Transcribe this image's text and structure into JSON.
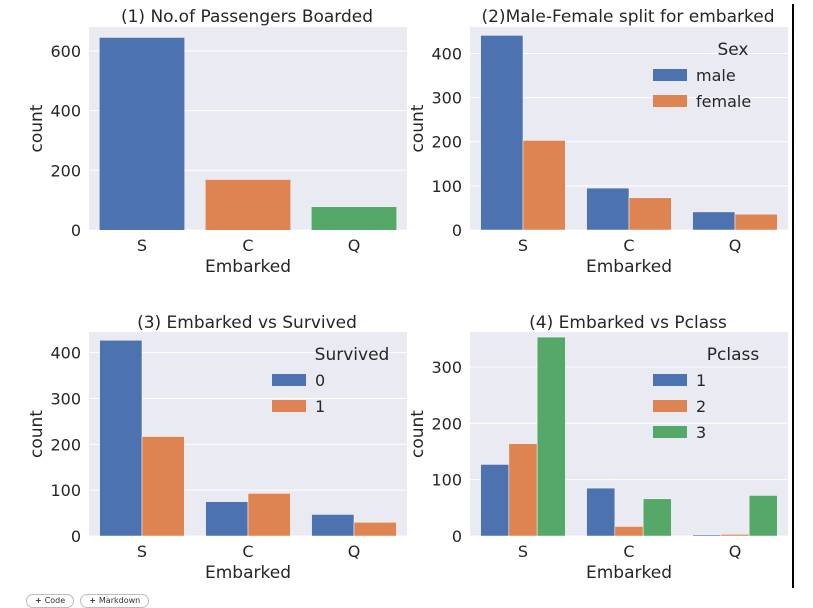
{
  "chart_data": [
    {
      "type": "bar",
      "title": "(1) No.of Passengers Boarded",
      "xlabel": "Embarked",
      "ylabel": "count",
      "categories": [
        "S",
        "C",
        "Q"
      ],
      "values": [
        644,
        168,
        77
      ],
      "bar_colors": [
        "#4c72b0",
        "#dd8452",
        "#55a868"
      ],
      "ylim": [
        0,
        680
      ],
      "yticks": [
        0,
        200,
        400,
        600
      ],
      "grid": true
    },
    {
      "type": "bar",
      "title": "(2)Male-Female split for embarked",
      "xlabel": "Embarked",
      "ylabel": "count",
      "categories": [
        "S",
        "C",
        "Q"
      ],
      "legend_title": "Sex",
      "legend_position": "top-right",
      "series": [
        {
          "name": "male",
          "values": [
            441,
            95,
            41
          ],
          "color": "#4c72b0"
        },
        {
          "name": "female",
          "values": [
            203,
            73,
            36
          ],
          "color": "#dd8452"
        }
      ],
      "ylim": [
        0,
        460
      ],
      "yticks": [
        0,
        100,
        200,
        300,
        400
      ],
      "grid": true
    },
    {
      "type": "bar",
      "title": "(3) Embarked vs Survived",
      "xlabel": "Embarked",
      "ylabel": "count",
      "categories": [
        "S",
        "C",
        "Q"
      ],
      "legend_title": "Survived",
      "legend_position": "top-right",
      "series": [
        {
          "name": "0",
          "values": [
            427,
            75,
            47
          ],
          "color": "#4c72b0"
        },
        {
          "name": "1",
          "values": [
            217,
            93,
            30
          ],
          "color": "#dd8452"
        }
      ],
      "ylim": [
        0,
        445
      ],
      "yticks": [
        0,
        100,
        200,
        300,
        400
      ],
      "grid": true
    },
    {
      "type": "bar",
      "title": "(4) Embarked vs Pclass",
      "xlabel": "Embarked",
      "ylabel": "count",
      "categories": [
        "S",
        "C",
        "Q"
      ],
      "legend_title": "Pclass",
      "legend_position": "top-right",
      "series": [
        {
          "name": "1",
          "values": [
            127,
            85,
            2
          ],
          "color": "#4c72b0"
        },
        {
          "name": "2",
          "values": [
            164,
            17,
            3
          ],
          "color": "#dd8452"
        },
        {
          "name": "3",
          "values": [
            353,
            66,
            72
          ],
          "color": "#55a868"
        }
      ],
      "ylim": [
        0,
        362
      ],
      "yticks": [
        0,
        100,
        200,
        300
      ],
      "grid": true
    }
  ],
  "toolbar": {
    "code_label": "Code",
    "markdown_label": "Markdown"
  }
}
